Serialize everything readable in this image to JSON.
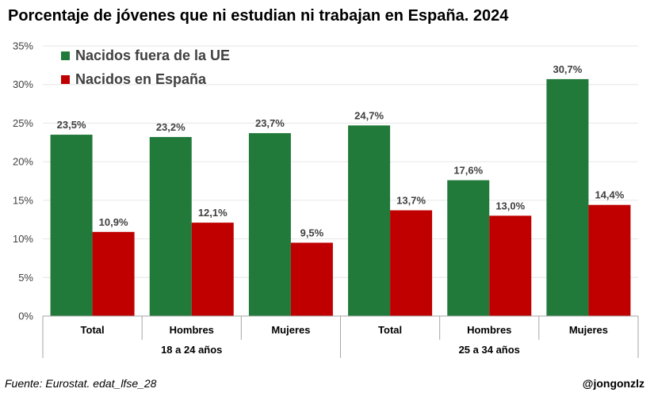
{
  "title": "Porcentaje de jóvenes que ni estudian ni trabajan en España. 2024",
  "source": "Fuente: Eurostat. edat_lfse_28",
  "credit": "@jongonzlz",
  "colors": {
    "series_ue": "#217a3a",
    "series_es": "#c00000",
    "grid": "#e6e6e6",
    "axis": "#a6a6a6"
  },
  "chart_data": {
    "type": "bar",
    "title": "Porcentaje de jóvenes que ni estudian ni trabajan en España. 2024",
    "categories": [
      "Total",
      "Hombres",
      "Mujeres",
      "Total",
      "Hombres",
      "Mujeres"
    ],
    "groups": [
      {
        "label": "18 a 24 años",
        "categories": [
          "Total",
          "Hombres",
          "Mujeres"
        ]
      },
      {
        "label": "25 a 34 años",
        "categories": [
          "Total",
          "Hombres",
          "Mujeres"
        ]
      }
    ],
    "series": [
      {
        "name": "Nacidos fuera de la UE",
        "color": "#217a3a",
        "values": [
          23.5,
          23.2,
          23.7,
          24.7,
          17.6,
          30.7
        ],
        "labels": [
          "23,5%",
          "23,2%",
          "23,7%",
          "24,7%",
          "17,6%",
          "30,7%"
        ]
      },
      {
        "name": "Nacidos en España",
        "color": "#c00000",
        "values": [
          10.9,
          12.1,
          9.5,
          13.7,
          13.0,
          14.4
        ],
        "labels": [
          "10,9%",
          "12,1%",
          "9,5%",
          "13,7%",
          "13,0%",
          "14,4%"
        ]
      }
    ],
    "ylim": [
      0,
      35
    ],
    "yticks": [
      0,
      5,
      10,
      15,
      20,
      25,
      30,
      35
    ],
    "ytick_labels": [
      "0%",
      "5%",
      "10%",
      "15%",
      "20%",
      "25%",
      "30%",
      "35%"
    ],
    "grid": true,
    "legend": "top-left"
  }
}
